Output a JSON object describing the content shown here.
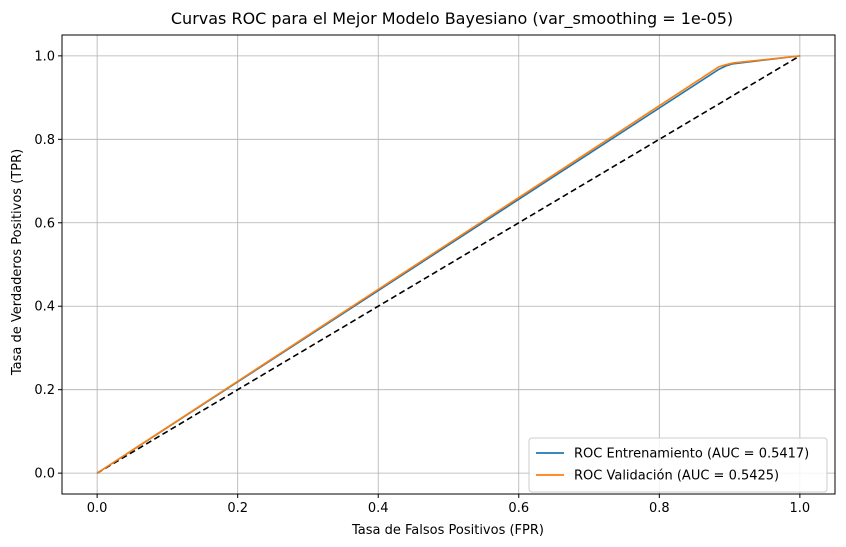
{
  "chart_data": {
    "type": "line",
    "title": "Curvas ROC para el Mejor Modelo Bayesiano (var_smoothing = 1e-05)",
    "xlabel": "Tasa de Falsos Positivos (FPR)",
    "ylabel": "Tasa de Verdaderos Positivos (TPR)",
    "xlim": [
      -0.05,
      1.05
    ],
    "ylim": [
      -0.05,
      1.05
    ],
    "xticks": [
      0.0,
      0.2,
      0.4,
      0.6,
      0.8,
      1.0
    ],
    "yticks": [
      0.0,
      0.2,
      0.4,
      0.6,
      0.8,
      1.0
    ],
    "xtick_labels": [
      "0.0",
      "0.2",
      "0.4",
      "0.6",
      "0.8",
      "1.0"
    ],
    "ytick_labels": [
      "0.0",
      "0.2",
      "0.4",
      "0.6",
      "0.8",
      "1.0"
    ],
    "grid": true,
    "legend_position": "lower-right",
    "series": [
      {
        "name": "ROC Entrenamiento (AUC = 0.5417)",
        "color": "#1f77b4",
        "style": "solid",
        "x": [
          0.0,
          0.885,
          0.895,
          0.905,
          1.0
        ],
        "y": [
          0.0,
          0.968,
          0.976,
          0.981,
          1.0
        ]
      },
      {
        "name": "ROC Validación (AUC = 0.5425)",
        "color": "#ff7f0e",
        "style": "solid",
        "x": [
          0.0,
          0.885,
          0.893,
          0.905,
          1.0
        ],
        "y": [
          0.0,
          0.974,
          0.978,
          0.983,
          1.0
        ]
      },
      {
        "name": "",
        "color": "#000000",
        "style": "dashed",
        "x": [
          0.0,
          1.0
        ],
        "y": [
          0.0,
          1.0
        ]
      }
    ]
  }
}
